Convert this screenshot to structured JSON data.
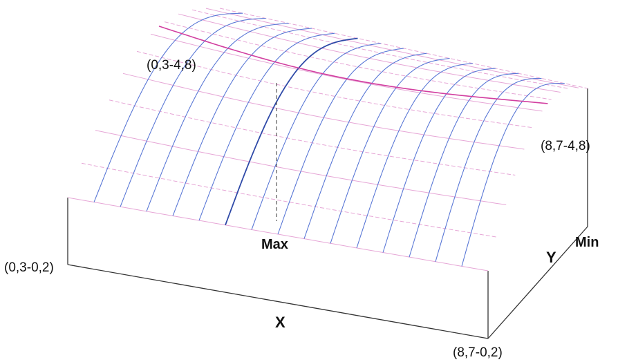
{
  "labels": {
    "corner_top_left": "(0,3-4,8)",
    "corner_bottom_left": "(0,3-0,2)",
    "corner_right_top": "(8,7-4,8)",
    "corner_bottom_right": "(8,7-0,2)",
    "max": "Max",
    "min": "Min",
    "x_axis": "X",
    "y_axis": "Y"
  },
  "colors": {
    "blue_line": "#5a78d6",
    "blue_highlight": "#2f4aa8",
    "pink_line": "#e6a6d6",
    "magenta_line": "#d23fa0",
    "outline": "#333333"
  }
}
